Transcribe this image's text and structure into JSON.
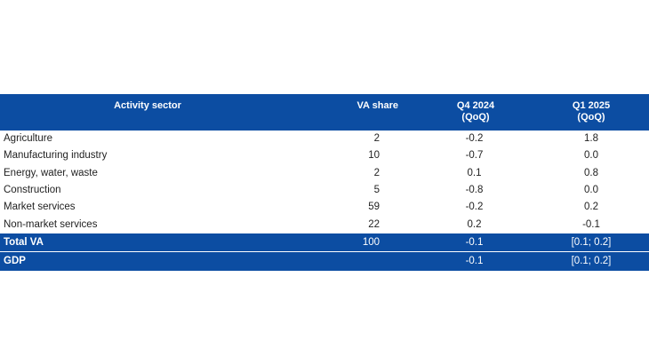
{
  "table": {
    "headers": {
      "sector": "Activity sector",
      "share": "VA share",
      "q4_line1": "Q4 2024",
      "q4_line2": "(QoQ)",
      "q1_line1": "Q1 2025",
      "q1_line2": "(QoQ)"
    },
    "rows": [
      {
        "sector": "Agriculture",
        "share": "2",
        "q4": "-0.2",
        "q1": "1.8"
      },
      {
        "sector": "Manufacturing industry",
        "share": "10",
        "q4": "-0.7",
        "q1": "0.0"
      },
      {
        "sector": "Energy, water, waste",
        "share": "2",
        "q4": "0.1",
        "q1": "0.8"
      },
      {
        "sector": "Construction",
        "share": "5",
        "q4": "-0.8",
        "q1": "0.0"
      },
      {
        "sector": "Market services",
        "share": "59",
        "q4": "-0.2",
        "q1": "0.2"
      },
      {
        "sector": "Non-market services",
        "share": "22",
        "q4": "0.2",
        "q1": "-0.1"
      }
    ],
    "totals": [
      {
        "sector": "Total VA",
        "share": "100",
        "q4": "-0.1",
        "q1": "[0.1; 0.2]"
      },
      {
        "sector": "GDP",
        "share": "",
        "q4": "-0.1",
        "q1": "[0.1; 0.2]"
      }
    ],
    "colors": {
      "header_bg": "#0c4da2",
      "header_text": "#ffffff",
      "body_text": "#222222"
    }
  }
}
